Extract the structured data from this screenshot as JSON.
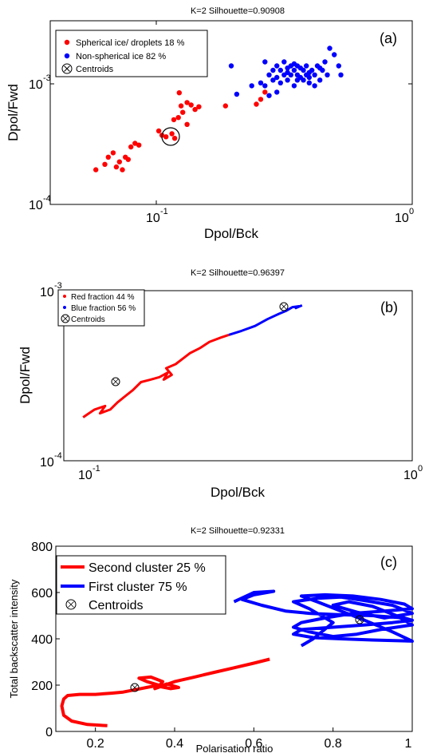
{
  "chart_data": [
    {
      "type": "scatter",
      "panel": "(a)",
      "title": "K=2  Silhouette=0.90908",
      "xlabel": "Dpol/Bck",
      "ylabel": "Dpol/Fwd",
      "xscale": "log",
      "yscale": "log",
      "xlim": [
        0.04,
        1
      ],
      "ylim": [
        0.0001,
        0.003
      ],
      "xticks": [
        {
          "base": "10",
          "exp": "-1"
        },
        {
          "base": "10",
          "exp": "0"
        }
      ],
      "yticks": [
        {
          "base": "10",
          "exp": "-4"
        },
        {
          "base": "10",
          "exp": "-3"
        }
      ],
      "legend_position": "top-left",
      "colors": {
        "red": "#ff0000",
        "blue": "#0000ff"
      },
      "series": [
        {
          "name": "Spherical ice/ droplets 18 %",
          "color": "#ff0000",
          "points": [
            [
              0.06,
              0.00019
            ],
            [
              0.065,
              0.00021
            ],
            [
              0.067,
              0.00024
            ],
            [
              0.07,
              0.00026
            ],
            [
              0.072,
              0.0002
            ],
            [
              0.074,
              0.00022
            ],
            [
              0.076,
              0.00019
            ],
            [
              0.078,
              0.00024
            ],
            [
              0.08,
              0.00023
            ],
            [
              0.082,
              0.00029
            ],
            [
              0.085,
              0.00031
            ],
            [
              0.088,
              0.0003
            ],
            [
              0.105,
              0.00039
            ],
            [
              0.108,
              0.00036
            ],
            [
              0.112,
              0.00035
            ],
            [
              0.118,
              0.00037
            ],
            [
              0.121,
              0.00034
            ],
            [
              0.12,
              0.00048
            ],
            [
              0.125,
              0.0005
            ],
            [
              0.13,
              0.00055
            ],
            [
              0.128,
              0.00062
            ],
            [
              0.135,
              0.00066
            ],
            [
              0.14,
              0.00063
            ],
            [
              0.145,
              0.00058
            ],
            [
              0.15,
              0.00061
            ],
            [
              0.126,
              0.00079
            ],
            [
              0.135,
              0.00044
            ],
            [
              0.19,
              0.00062
            ],
            [
              0.25,
              0.00064
            ],
            [
              0.26,
              0.0007
            ],
            [
              0.27,
              0.0008
            ]
          ]
        },
        {
          "name": "Non-spherical ice 82 %",
          "color": "#0000ff",
          "points": [
            [
              0.2,
              0.0013
            ],
            [
              0.21,
              0.00077
            ],
            [
              0.24,
              0.0009
            ],
            [
              0.26,
              0.00095
            ],
            [
              0.27,
              0.0009
            ],
            [
              0.28,
              0.0011
            ],
            [
              0.28,
              0.00075
            ],
            [
              0.29,
              0.001
            ],
            [
              0.29,
              0.0012
            ],
            [
              0.3,
              0.0013
            ],
            [
              0.3,
              0.00105
            ],
            [
              0.31,
              0.00095
            ],
            [
              0.31,
              0.0012
            ],
            [
              0.32,
              0.0011
            ],
            [
              0.32,
              0.0014
            ],
            [
              0.33,
              0.001
            ],
            [
              0.33,
              0.00125
            ],
            [
              0.34,
              0.0011
            ],
            [
              0.34,
              0.0013
            ],
            [
              0.35,
              0.0009
            ],
            [
              0.35,
              0.0012
            ],
            [
              0.36,
              0.0011
            ],
            [
              0.36,
              0.0013
            ],
            [
              0.37,
              0.00105
            ],
            [
              0.37,
              0.00125
            ],
            [
              0.38,
              0.001
            ],
            [
              0.38,
              0.0012
            ],
            [
              0.39,
              0.0011
            ],
            [
              0.39,
              0.0013
            ],
            [
              0.4,
              0.00115
            ],
            [
              0.4,
              0.00095
            ],
            [
              0.41,
              0.0012
            ],
            [
              0.42,
              0.0011
            ],
            [
              0.43,
              0.0013
            ],
            [
              0.44,
              0.001
            ],
            [
              0.45,
              0.0012
            ],
            [
              0.46,
              0.0014
            ],
            [
              0.47,
              0.0011
            ],
            [
              0.48,
              0.0018
            ],
            [
              0.5,
              0.0016
            ],
            [
              0.52,
              0.0013
            ],
            [
              0.53,
              0.0011
            ],
            [
              0.3,
              0.0008
            ],
            [
              0.27,
              0.0014
            ],
            [
              0.42,
              0.0009
            ],
            [
              0.35,
              0.00135
            ],
            [
              0.33,
              0.00115
            ],
            [
              0.36,
              0.001
            ],
            [
              0.4,
              0.00105
            ],
            [
              0.44,
              0.00125
            ]
          ]
        }
      ],
      "centroids": [
        [
          0.115,
          0.00037
        ],
        [
          0.35,
          0.00115
        ]
      ],
      "legend": [
        "Spherical ice/ droplets 18 %",
        "Non-spherical ice 82 %",
        "Centroids"
      ]
    },
    {
      "type": "line",
      "panel": "(b)",
      "title": "K=2  Silhouette=0.96397",
      "xlabel": "Dpol/Bck",
      "ylabel": "Dpol/Fwd",
      "xscale": "log",
      "yscale": "log",
      "xlim": [
        0.08,
        1
      ],
      "ylim": [
        0.0001,
        0.001
      ],
      "xticks": [
        {
          "base": "10",
          "exp": "-1"
        },
        {
          "base": "10",
          "exp": "0"
        }
      ],
      "yticks": [
        {
          "base": "10",
          "exp": "-4"
        },
        {
          "base": "10",
          "exp": "-3"
        }
      ],
      "legend_position": "top-left",
      "series": [
        {
          "name": "Red fraction 44 %",
          "color": "#ff0000",
          "points": [
            [
              0.092,
              0.00018
            ],
            [
              0.096,
              0.00019
            ],
            [
              0.1,
              0.0002
            ],
            [
              0.108,
              0.00021
            ],
            [
              0.104,
              0.00019
            ],
            [
              0.112,
              0.0002
            ],
            [
              0.118,
              0.00022
            ],
            [
              0.125,
              0.00024
            ],
            [
              0.132,
              0.00026
            ],
            [
              0.14,
              0.00029
            ],
            [
              0.15,
              0.0003
            ],
            [
              0.16,
              0.00031
            ],
            [
              0.17,
              0.00033
            ],
            [
              0.165,
              0.0003
            ],
            [
              0.175,
              0.00032
            ],
            [
              0.168,
              0.00035
            ],
            [
              0.18,
              0.00037
            ],
            [
              0.19,
              0.0004
            ],
            [
              0.2,
              0.00043
            ],
            [
              0.215,
              0.00046
            ],
            [
              0.23,
              0.0005
            ],
            [
              0.25,
              0.00053
            ],
            [
              0.265,
              0.00055
            ]
          ]
        },
        {
          "name": "Blue fraction 56 %",
          "color": "#0000ff",
          "points": [
            [
              0.265,
              0.00055
            ],
            [
              0.29,
              0.00058
            ],
            [
              0.32,
              0.00062
            ],
            [
              0.35,
              0.00068
            ],
            [
              0.38,
              0.00073
            ],
            [
              0.4,
              0.00076
            ],
            [
              0.42,
              0.0008
            ],
            [
              0.44,
              0.00081
            ],
            [
              0.43,
              0.00079
            ],
            [
              0.45,
              0.00082
            ]
          ]
        }
      ],
      "centroids": [
        [
          0.14,
          0.00029
        ],
        [
          0.4,
          0.00078
        ]
      ],
      "legend": [
        "Red fraction 44 %",
        "Blue fraction 56 %",
        "Centroids"
      ]
    },
    {
      "type": "line",
      "panel": "(c)",
      "title": "K=2  Silhouette=0.92331",
      "xlabel": "Polarisation ratio",
      "ylabel": "Total backscatter intensity",
      "xlim": [
        0.1,
        1
      ],
      "ylim": [
        0,
        800
      ],
      "xticks": [
        "0.2",
        "0.4",
        "0.6",
        "0.8",
        "1"
      ],
      "yticks": [
        "0",
        "200",
        "400",
        "600",
        "800"
      ],
      "legend_position": "top-left",
      "series": [
        {
          "name": "Second cluster  25 %",
          "color": "#ff0000",
          "points": [
            [
              0.23,
              25
            ],
            [
              0.18,
              30
            ],
            [
              0.14,
              45
            ],
            [
              0.12,
              70
            ],
            [
              0.115,
              110
            ],
            [
              0.12,
              140
            ],
            [
              0.13,
              155
            ],
            [
              0.16,
              160
            ],
            [
              0.2,
              160
            ],
            [
              0.24,
              165
            ],
            [
              0.27,
              170
            ],
            [
              0.3,
              180
            ],
            [
              0.33,
              190
            ],
            [
              0.36,
              200
            ],
            [
              0.33,
              215
            ],
            [
              0.31,
              230
            ],
            [
              0.34,
              235
            ],
            [
              0.37,
              215
            ],
            [
              0.36,
              195
            ],
            [
              0.39,
              185
            ],
            [
              0.41,
              190
            ],
            [
              0.38,
              205
            ],
            [
              0.35,
              185
            ],
            [
              0.4,
              215
            ],
            [
              0.45,
              235
            ],
            [
              0.5,
              255
            ],
            [
              0.55,
              275
            ],
            [
              0.6,
              295
            ],
            [
              0.64,
              312
            ]
          ]
        },
        {
          "name": "First cluster 75 %",
          "color": "#0000ff",
          "points": [
            [
              0.55,
              560
            ],
            [
              0.6,
              600
            ],
            [
              0.65,
              605
            ],
            [
              0.6,
              590
            ],
            [
              0.57,
              570
            ],
            [
              0.62,
              545
            ],
            [
              0.68,
              520
            ],
            [
              0.74,
              510
            ],
            [
              0.8,
              505
            ],
            [
              0.9,
              500
            ],
            [
              0.98,
              490
            ],
            [
              1.0,
              480
            ],
            [
              0.95,
              470
            ],
            [
              0.88,
              460
            ],
            [
              0.8,
              450
            ],
            [
              0.72,
              440
            ],
            [
              0.7,
              420
            ],
            [
              0.75,
              405
            ],
            [
              0.82,
              400
            ],
            [
              0.9,
              395
            ],
            [
              1.0,
              390
            ],
            [
              0.95,
              430
            ],
            [
              0.88,
              480
            ],
            [
              0.82,
              520
            ],
            [
              0.76,
              560
            ],
            [
              0.72,
              585
            ],
            [
              0.78,
              590
            ],
            [
              0.85,
              585
            ],
            [
              0.92,
              570
            ],
            [
              0.98,
              550
            ],
            [
              1.0,
              530
            ],
            [
              0.93,
              520
            ],
            [
              0.85,
              510
            ],
            [
              0.78,
              490
            ],
            [
              0.72,
              470
            ],
            [
              0.7,
              450
            ],
            [
              0.74,
              430
            ],
            [
              0.8,
              410
            ],
            [
              0.86,
              420
            ],
            [
              0.92,
              440
            ],
            [
              1.0,
              460
            ],
            [
              0.96,
              500
            ],
            [
              0.9,
              540
            ],
            [
              0.84,
              560
            ],
            [
              0.8,
              545
            ],
            [
              0.86,
              515
            ],
            [
              0.93,
              490
            ],
            [
              1.0,
              510
            ],
            [
              0.95,
              545
            ],
            [
              0.88,
              565
            ],
            [
              0.82,
              580
            ],
            [
              0.76,
              575
            ],
            [
              0.7,
              560
            ],
            [
              0.74,
              530
            ],
            [
              0.8,
              470
            ],
            [
              0.75,
              400
            ],
            [
              0.72,
              370
            ]
          ]
        }
      ],
      "centroids": [
        [
          0.3,
          180
        ],
        [
          0.865,
          483
        ]
      ],
      "legend": [
        "Second cluster  25 %",
        "First cluster 75 %",
        "Centroids"
      ]
    }
  ]
}
